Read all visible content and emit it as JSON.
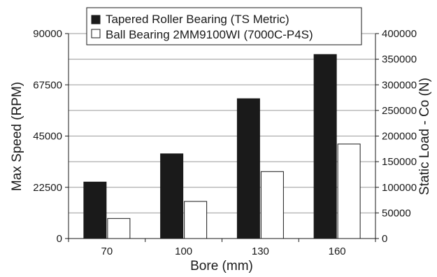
{
  "chart_data": {
    "type": "bar",
    "xlabel": "Bore (mm)",
    "ylabel": "Max Speed (RPM)",
    "y2label": "Static Load - Co (N)",
    "categories": [
      "70",
      "100",
      "130",
      "160"
    ],
    "ylim": [
      0,
      90000
    ],
    "y2lim": [
      0,
      400000
    ],
    "yticks": [
      "0",
      "22500",
      "45000",
      "67500",
      "90000"
    ],
    "y2ticks": [
      "0",
      "50000",
      "100000",
      "150000",
      "200000",
      "250000",
      "300000",
      "350000",
      "400000"
    ],
    "grid": true,
    "legend_position": "top",
    "series": [
      {
        "name": "Tapered Roller Bearing (TS Metric)",
        "color": "#1a1a1a",
        "values": [
          24800,
          37200,
          61400,
          80800
        ]
      },
      {
        "name": "Ball Bearing 2MM9100WI (7000C-P4S)",
        "color": "#ffffff",
        "values": [
          8800,
          16300,
          29400,
          41500
        ]
      }
    ]
  }
}
